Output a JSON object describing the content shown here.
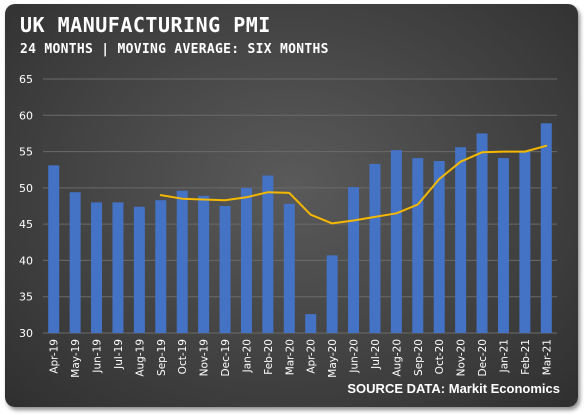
{
  "title": "UK MANUFACTURING PMI",
  "subtitle": "24 MONTHS | MOVING AVERAGE: SIX MONTHS",
  "source": "SOURCE DATA: Markit Economics",
  "colors": {
    "bar": "#4472c4",
    "line": "#f5b800",
    "grid": "#6a6a6a",
    "text": "#ffffff"
  },
  "chart_data": {
    "type": "bar",
    "categories": [
      "Apr-19",
      "May-19",
      "Jun-19",
      "Jul-19",
      "Aug-19",
      "Sep-19",
      "Oct-19",
      "Nov-19",
      "Dec-19",
      "Jan-20",
      "Feb-20",
      "Mar-20",
      "Apr-20",
      "May-20",
      "Jun-20",
      "Jul-20",
      "Aug-20",
      "Sep-20",
      "Oct-20",
      "Nov-20",
      "Dec-20",
      "Jan-21",
      "Feb-21",
      "Mar-21"
    ],
    "series": [
      {
        "type": "bar",
        "values": [
          53.1,
          49.4,
          48.0,
          48.0,
          47.4,
          48.3,
          49.6,
          48.9,
          47.5,
          50.0,
          51.7,
          47.8,
          32.6,
          40.7,
          50.1,
          53.3,
          55.2,
          54.1,
          53.7,
          55.6,
          57.5,
          54.1,
          55.1,
          58.9
        ]
      },
      {
        "type": "line",
        "values": [
          null,
          null,
          null,
          null,
          null,
          49.0,
          48.5,
          48.4,
          48.3,
          48.7,
          49.4,
          49.3,
          46.3,
          45.1,
          45.5,
          46.0,
          46.5,
          47.7,
          51.2,
          53.6,
          54.9,
          55.0,
          55.0,
          55.8
        ]
      }
    ],
    "ylim": [
      30,
      65
    ],
    "yticks": [
      30,
      35,
      40,
      45,
      50,
      55,
      60,
      65
    ],
    "grid": true
  }
}
